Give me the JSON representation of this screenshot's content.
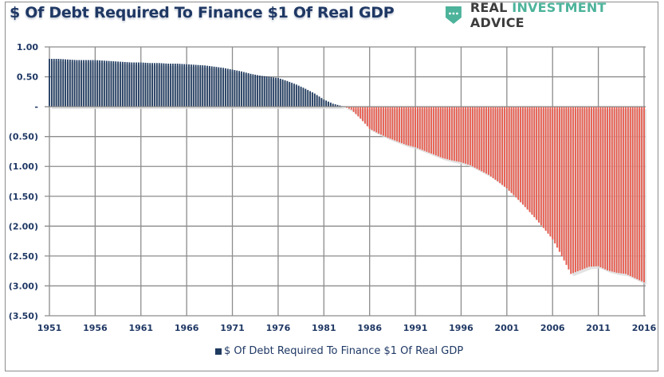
{
  "header": {
    "title": "$ Of Debt Required To Finance $1 Of Real GDP",
    "brand": {
      "part1": "REAL ",
      "part2": "INVESTMENT ",
      "part3": "ADVICE",
      "icon": "shield-dots-icon",
      "accent_color": "#4db39b"
    }
  },
  "colors": {
    "positive": "#1f3a5f",
    "negative": "#e8584a",
    "shadow": "#d9d9d9",
    "grid": "#8c8c8c",
    "text": "#1f3864"
  },
  "chart_data": {
    "type": "bar",
    "title": "$ Of Debt Required To Finance $1 Of Real GDP",
    "xlabel": "",
    "ylabel": "",
    "frequency": "quarterly bars (annual values listed, interpolated between years)",
    "ylim": [
      -3.5,
      1.0
    ],
    "yticks": [
      1.0,
      0.5,
      0,
      -0.5,
      -1.0,
      -1.5,
      -2.0,
      -2.5,
      -3.0,
      -3.5
    ],
    "ytick_labels": [
      "1.00",
      "0.50",
      "-",
      "(0.50)",
      "(1.00)",
      "(1.50)",
      "(2.00)",
      "(2.50)",
      "(3.00)",
      "(3.50)"
    ],
    "xtick_labels": [
      "1951",
      "1956",
      "1961",
      "1966",
      "1971",
      "1976",
      "1981",
      "1986",
      "1991",
      "1996",
      "2001",
      "2006",
      "2011",
      "2016"
    ],
    "grid": true,
    "legend": {
      "position": "bottom",
      "entries": [
        "$ Of Debt Required To Finance $1 Of Real GDP"
      ]
    },
    "x": [
      1951,
      1952,
      1953,
      1954,
      1955,
      1956,
      1957,
      1958,
      1959,
      1960,
      1961,
      1962,
      1963,
      1964,
      1965,
      1966,
      1967,
      1968,
      1969,
      1970,
      1971,
      1972,
      1973,
      1974,
      1975,
      1976,
      1977,
      1978,
      1979,
      1980,
      1981,
      1982,
      1983,
      1984,
      1985,
      1986,
      1987,
      1988,
      1989,
      1990,
      1991,
      1992,
      1993,
      1994,
      1995,
      1996,
      1997,
      1998,
      1999,
      2000,
      2001,
      2002,
      2003,
      2004,
      2005,
      2006,
      2007,
      2008,
      2009,
      2010,
      2011,
      2012,
      2013,
      2014,
      2015,
      2016
    ],
    "values": [
      0.8,
      0.8,
      0.79,
      0.78,
      0.78,
      0.78,
      0.77,
      0.76,
      0.75,
      0.74,
      0.74,
      0.73,
      0.73,
      0.72,
      0.72,
      0.71,
      0.7,
      0.69,
      0.67,
      0.65,
      0.62,
      0.59,
      0.55,
      0.52,
      0.5,
      0.48,
      0.43,
      0.37,
      0.3,
      0.22,
      0.12,
      0.05,
      0.01,
      -0.05,
      -0.2,
      -0.37,
      -0.45,
      -0.52,
      -0.58,
      -0.64,
      -0.68,
      -0.74,
      -0.8,
      -0.86,
      -0.9,
      -0.93,
      -0.98,
      -1.06,
      -1.14,
      -1.25,
      -1.37,
      -1.52,
      -1.68,
      -1.85,
      -2.03,
      -2.22,
      -2.5,
      -2.8,
      -2.74,
      -2.68,
      -2.67,
      -2.74,
      -2.78,
      -2.8,
      -2.87,
      -2.94
    ]
  }
}
